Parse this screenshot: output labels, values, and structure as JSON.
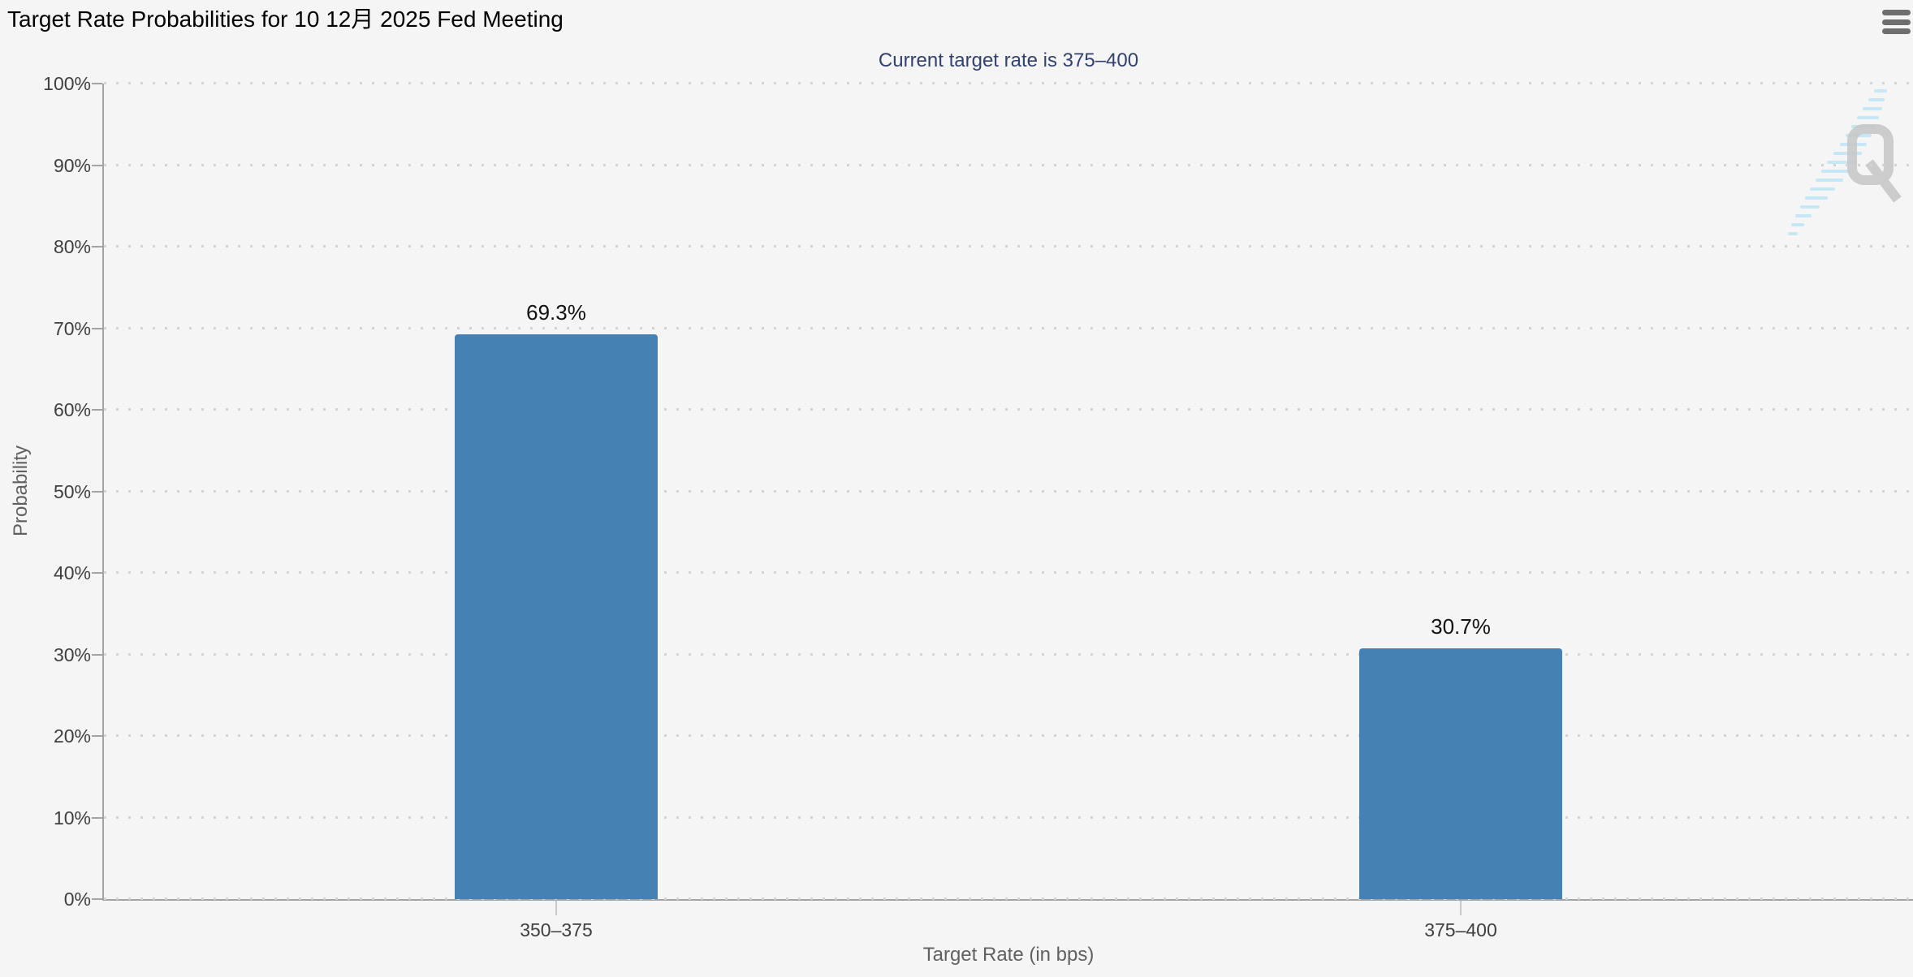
{
  "header": {
    "title": "Target Rate Probabilities for 10 12月 2025 Fed Meeting",
    "menu_icon": "hamburger-icon"
  },
  "chart_data": {
    "type": "bar",
    "title": "Target Rate Probabilities for 10 12月 2025 Fed Meeting",
    "subtitle": "Current target rate is 375–400",
    "categories": [
      "350–375",
      "375–400"
    ],
    "values": [
      69.3,
      30.7
    ],
    "value_labels": [
      "69.3%",
      "30.7%"
    ],
    "xlabel": "Target Rate (in bps)",
    "ylabel": "Probability",
    "ylim": [
      0,
      100
    ],
    "ytick_step": 10,
    "ytick_labels": [
      "0%",
      "10%",
      "20%",
      "30%",
      "40%",
      "50%",
      "60%",
      "70%",
      "80%",
      "90%",
      "100%"
    ],
    "grid": "dotted-horizontal",
    "legend_position": "none",
    "bar_color": "#4681b4"
  },
  "watermark": {
    "letter": "Q",
    "name": "quikstrike-logo-watermark"
  },
  "colors": {
    "background": "#f5f5f6",
    "bar": "#4681b4",
    "subtitle": "#324170",
    "axis_line": "#a3a3a3",
    "grid_dot": "#d3d3d3",
    "tick_label": "#3f3f3f",
    "axis_title": "#616161",
    "value_label": "#111111",
    "menu_icon": "#6e6e6e",
    "watermark_gray": "#c5c5c5",
    "watermark_blue": "#c2e6f7"
  }
}
